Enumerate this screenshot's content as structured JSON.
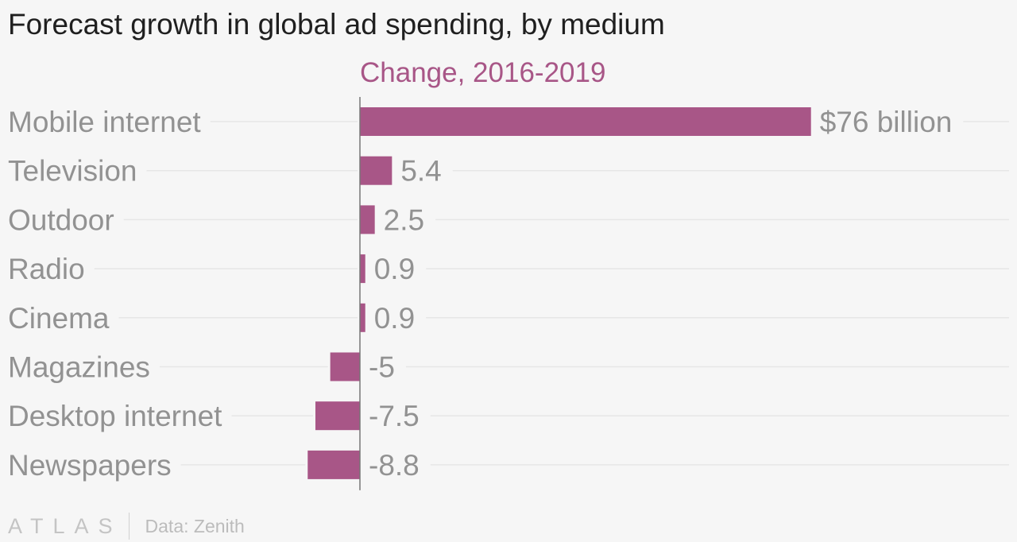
{
  "chart_data": {
    "type": "bar",
    "orientation": "horizontal",
    "title": "Forecast growth in global ad spending, by medium",
    "series": [
      {
        "name": "Change, 2016-2019",
        "values": [
          76,
          5.4,
          2.5,
          0.9,
          0.9,
          -5,
          -7.5,
          -8.8
        ]
      }
    ],
    "categories": [
      "Mobile internet",
      "Television",
      "Outdoor",
      "Radio",
      "Cinema",
      "Magazines",
      "Desktop internet",
      "Newspapers"
    ],
    "value_labels": [
      "$76 billion",
      "5.4",
      "2.5",
      "0.9",
      "0.9",
      "-5",
      "-7.5",
      "-8.8"
    ],
    "xlim": [
      -8.8,
      76
    ],
    "grid": true,
    "colors": {
      "bar": "#a85687",
      "series_label": "#a85687",
      "axis": "#777777",
      "gridline": "#e6e6e6",
      "category_text": "#929292",
      "value_text": "#929292"
    }
  },
  "footer": {
    "logo": "ATLAS",
    "source": "Data: Zenith"
  }
}
